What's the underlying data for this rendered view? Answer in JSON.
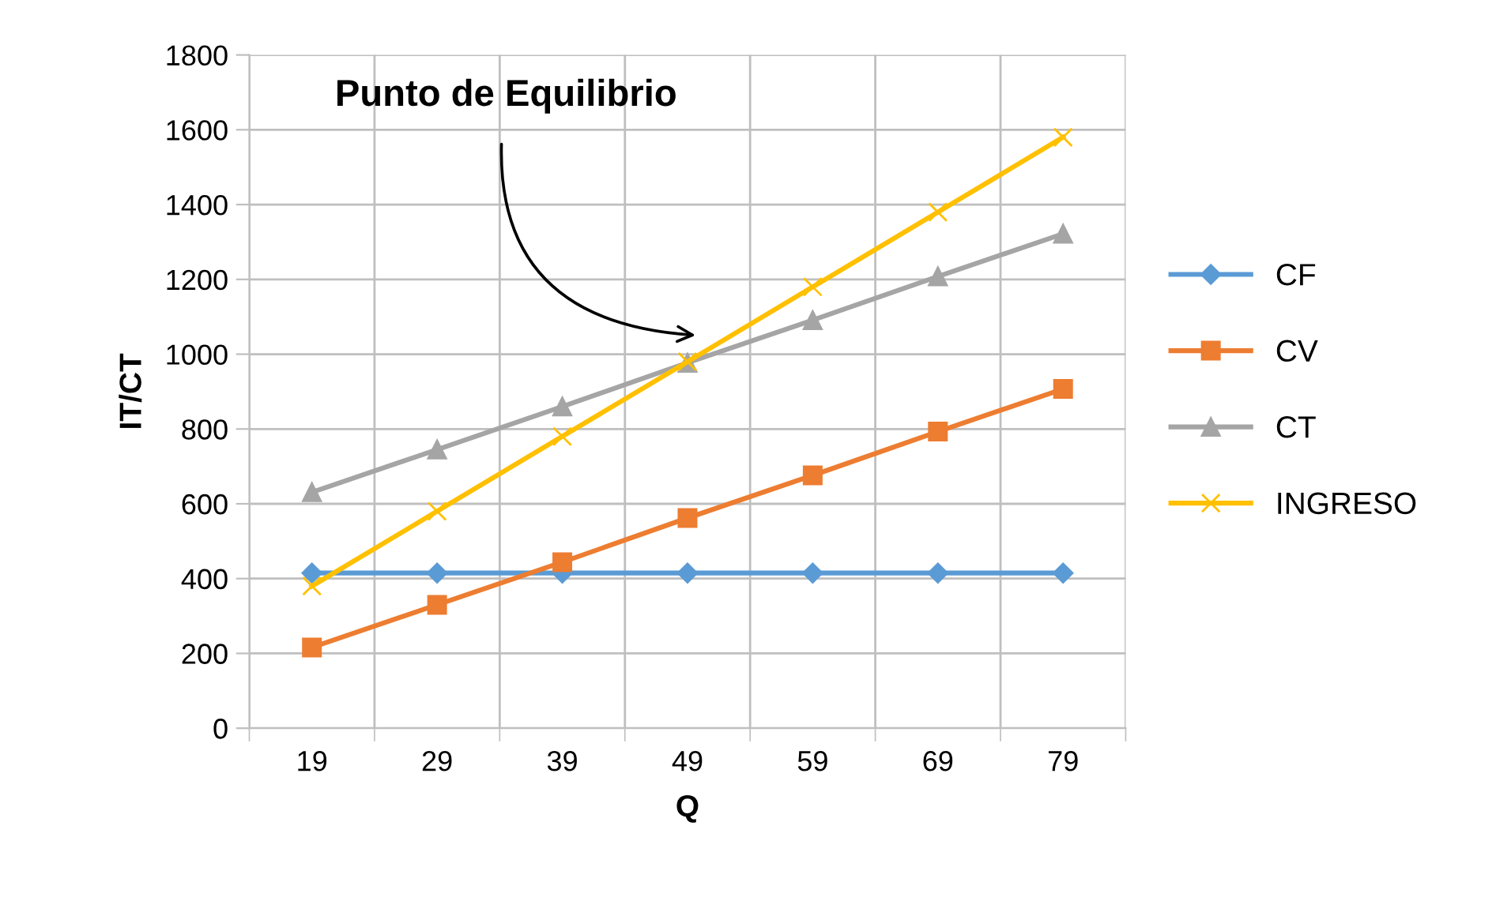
{
  "chart_data": {
    "type": "line",
    "xlabel": "Q",
    "ylabel": "IT/CT",
    "categories": [
      "19",
      "29",
      "39",
      "49",
      "59",
      "69",
      "79"
    ],
    "series": [
      {
        "name": "CF",
        "color": "#5b9bd5",
        "marker": "diamond",
        "values": [
          415,
          415,
          415,
          415,
          415,
          415,
          415
        ]
      },
      {
        "name": "CV",
        "color": "#ed7d31",
        "marker": "square",
        "values": [
          216,
          330,
          444,
          562,
          676,
          793,
          907
        ]
      },
      {
        "name": "CT",
        "color": "#a5a5a5",
        "marker": "triangle",
        "values": [
          631,
          745,
          860,
          977,
          1091,
          1208,
          1322
        ]
      },
      {
        "name": "INGRESO",
        "color": "#ffc000",
        "marker": "cross",
        "values": [
          380,
          580,
          780,
          980,
          1180,
          1380,
          1580
        ]
      }
    ],
    "ylim": [
      0,
      1800
    ],
    "yticks": [
      0,
      200,
      400,
      600,
      800,
      1000,
      1200,
      1400,
      1600,
      1800
    ],
    "grid": true,
    "legend": "right",
    "annotations": [
      {
        "text": "Punto de Equilibrio",
        "x": "49",
        "y": 1050
      }
    ]
  }
}
